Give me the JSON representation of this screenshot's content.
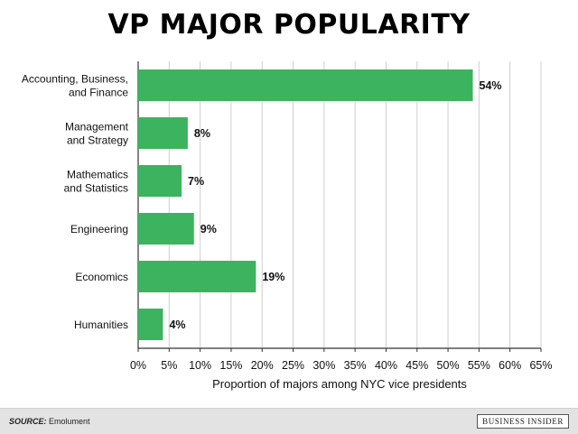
{
  "chart_data": {
    "type": "bar",
    "orientation": "horizontal",
    "title": "VP MAJOR POPULARITY",
    "xlabel": "Proportion of majors among NYC vice presidents",
    "ylabel": "",
    "categories": [
      [
        "Accounting, Business,",
        "and Finance"
      ],
      [
        "Management",
        "and Strategy"
      ],
      [
        "Mathematics",
        "and Statistics"
      ],
      [
        "Engineering"
      ],
      [
        "Economics"
      ],
      [
        "Humanities"
      ]
    ],
    "values": [
      54,
      8,
      7,
      9,
      19,
      4
    ],
    "data_labels": [
      "54%",
      "8%",
      "7%",
      "9%",
      "19%",
      "4%"
    ],
    "xlim": [
      0,
      65
    ],
    "x_ticks": [
      "0%",
      "5%",
      "10%",
      "15%",
      "20%",
      "25%",
      "30%",
      "35%",
      "40%",
      "45%",
      "50%",
      "55%",
      "60%",
      "65%"
    ],
    "grid": "vertical",
    "bar_color": "#3cb35f"
  },
  "footer": {
    "source_label": "SOURCE:",
    "source_text": "Emolument",
    "brand": "BUSINESS INSIDER"
  }
}
